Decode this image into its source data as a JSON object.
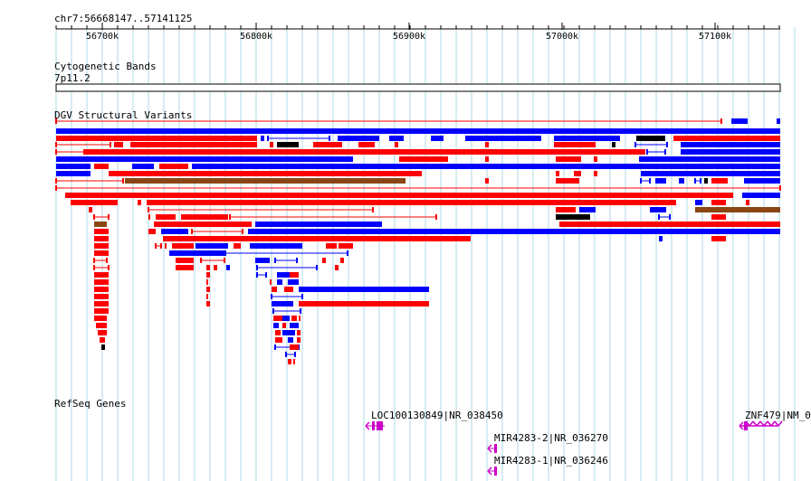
{
  "region": "chr7:56668147..57141125",
  "ruler": {
    "ticks": [
      "56700k",
      "56800k",
      "56900k",
      "57000k",
      "57100k"
    ]
  },
  "tracks": {
    "cytoband": {
      "title": "Cytogenetic Bands",
      "band": "7p11.2"
    },
    "dgv": {
      "title": "DGV Structural Variants"
    },
    "refseq": {
      "title": "RefSeq Genes",
      "genes": [
        {
          "label": "LOC100130849|NR_038450"
        },
        {
          "label": "MIR4283-2|NR_036270"
        },
        {
          "label": "MIR4283-1|NR_036246"
        },
        {
          "label": "ZNF479|NM_0"
        }
      ]
    }
  },
  "colors": {
    "gain": "#ff0000",
    "loss": "#0000ff",
    "inversion": "#8b4513",
    "complex": "#000000",
    "gene": "#cc00cc",
    "grid": "#add8e6"
  }
}
